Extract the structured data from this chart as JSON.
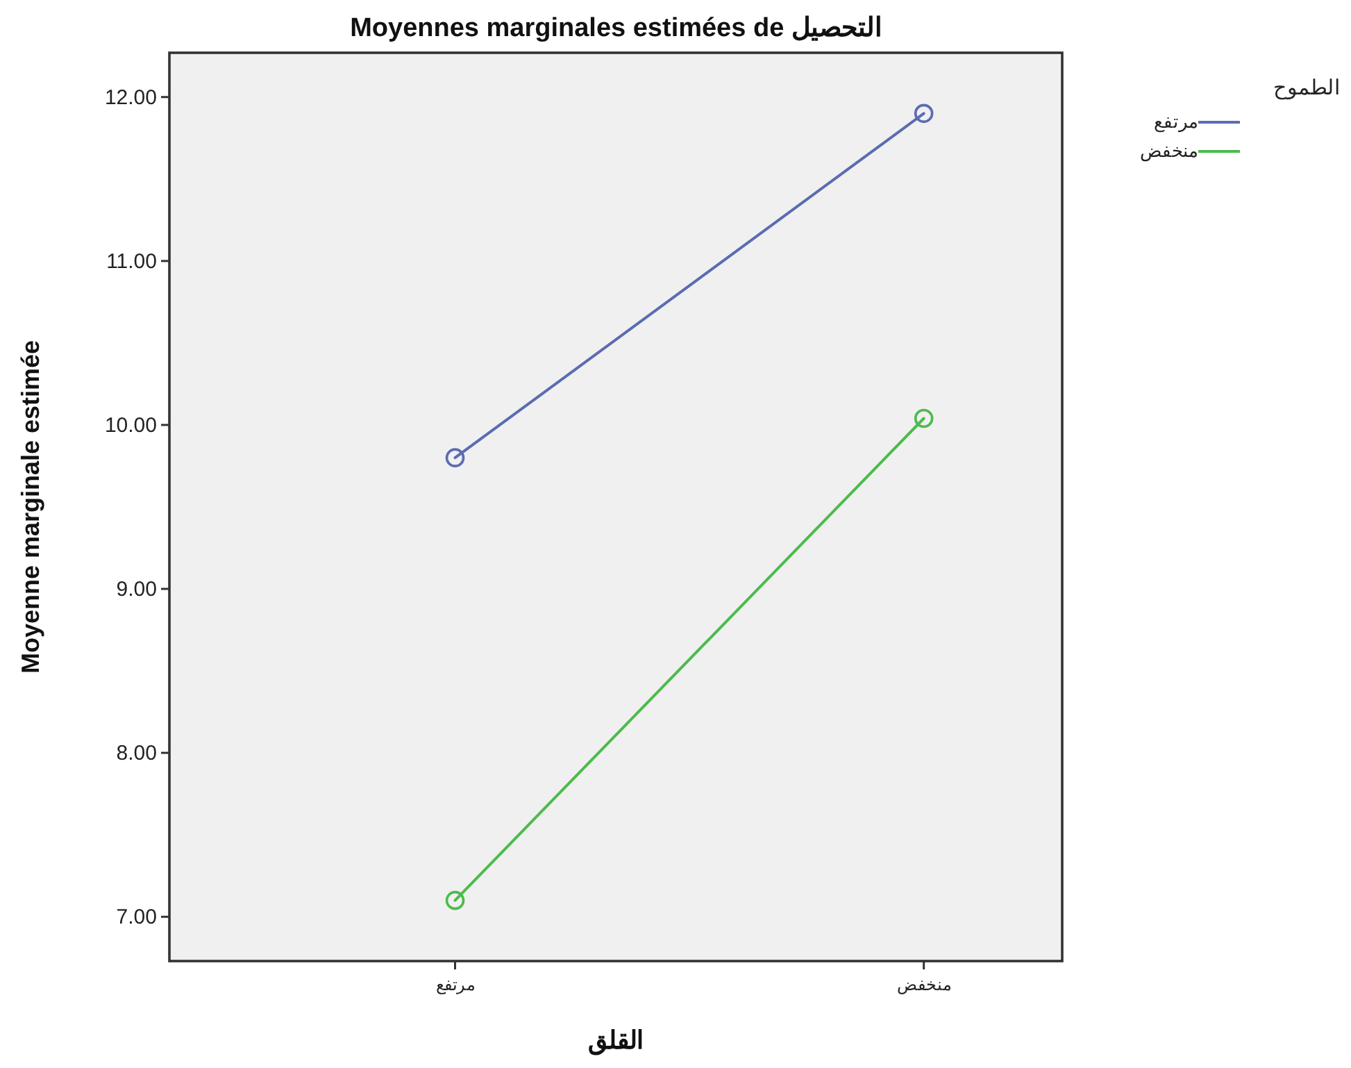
{
  "chart_data": {
    "type": "line",
    "title": "Moyennes marginales estimées de التحصيل",
    "xlabel": "القلق",
    "ylabel": "Moyenne marginale estimée",
    "legend_title": "الطموح",
    "categories": [
      "مرتفع",
      "منخفض"
    ],
    "series": [
      {
        "name": "مرتفع",
        "color": "#5b6cb2",
        "values": [
          9.8,
          11.9
        ]
      },
      {
        "name": "منخفض",
        "color": "#4cbb4c",
        "values": [
          7.1,
          10.04
        ]
      }
    ],
    "ylim": [
      6.73,
      12.27
    ],
    "yticks": [
      {
        "value": 7,
        "label": "7.00"
      },
      {
        "value": 8,
        "label": "8.00"
      },
      {
        "value": 9,
        "label": "9.00"
      },
      {
        "value": 10,
        "label": "10.00"
      },
      {
        "value": 11,
        "label": "11.00"
      },
      {
        "value": 12,
        "label": "12.00"
      }
    ],
    "legend": "right",
    "marker": "circle"
  }
}
